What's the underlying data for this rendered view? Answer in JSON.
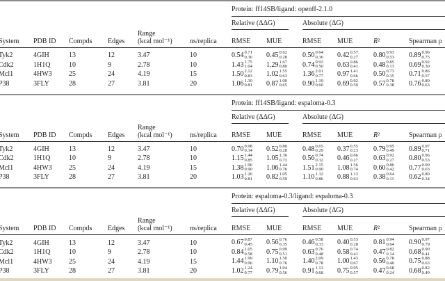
{
  "colors": {
    "separator": "#8c8c8c",
    "rule": "#2b2b2b",
    "footer_bar": "#ddd8c2",
    "text": "#1d1d1d",
    "background": "#ffffff"
  },
  "columns": {
    "system": "System",
    "pdb_id": "PDB ID",
    "compds": "Compds",
    "edges": "Edges",
    "range_line1": "Range",
    "range_line2": "(kcal mol⁻¹)",
    "ns_replica": "ns/replica",
    "relative_group": "Relative (ΔΔG)",
    "absolute_group": "Absolute (ΔG)",
    "rmse": "RMSE",
    "mue": "MUE",
    "r2": "R²",
    "spearman": "Spearman ρ"
  },
  "sections": [
    {
      "protein_header": "Protein: ff14SB/ligand: openff-2.1.0",
      "rows": [
        {
          "system": "Tyk2",
          "pdb_id": "4GIH",
          "compds": "13",
          "edges": "12",
          "range": "3.47",
          "ns_replica": "10",
          "rel_rmse": {
            "v": "0.54",
            "hi": "0.71",
            "lo": "0.36"
          },
          "rel_mue": {
            "v": "0.45",
            "hi": "0.62",
            "lo": "0.28"
          },
          "abs_rmse": {
            "v": "0.50",
            "hi": "0.64",
            "lo": "0.36"
          },
          "abs_mue": {
            "v": "0.42",
            "hi": "0.57",
            "lo": "0.27"
          },
          "r2": {
            "v": "0.80",
            "hi": "0.93",
            "lo": "0.53"
          },
          "spearman": {
            "v": "0.89",
            "hi": "0.96",
            "lo": "0.75"
          }
        },
        {
          "system": "Cdk2",
          "pdb_id": "1H1Q",
          "compds": "10",
          "edges": "9",
          "range": "2.78",
          "ns_replica": "10",
          "rel_rmse": {
            "v": "1.43",
            "hi": "1.75",
            "lo": "1.04"
          },
          "rel_mue": {
            "v": "1.29",
            "hi": "1.67",
            "lo": "0.80"
          },
          "abs_rmse": {
            "v": "0.74",
            "hi": "0.93",
            "lo": "0.50"
          },
          "abs_mue": {
            "v": "0.63",
            "hi": "0.86",
            "lo": "0.41"
          },
          "r2": {
            "v": "0.48",
            "hi": "0.85",
            "lo": "0.13"
          },
          "spearman": {
            "v": "0.69",
            "hi": "0.92",
            "lo": "0.30"
          }
        },
        {
          "system": "Mcl1",
          "pdb_id": "4HW3",
          "compds": "25",
          "edges": "24",
          "range": "4.19",
          "ns_replica": "15",
          "rel_rmse": {
            "v": "1.50",
            "hi": "2.12",
            "lo": "0.83"
          },
          "rel_mue": {
            "v": "1.02",
            "hi": "1.55",
            "lo": "0.63"
          },
          "abs_rmse": {
            "v": "1.36",
            "hi": "2.01",
            "lo": "0.77"
          },
          "abs_mue": {
            "v": "0.97",
            "hi": "1.41",
            "lo": "0.66"
          },
          "r2": {
            "v": "0.50",
            "hi": "0.73",
            "lo": "0.35"
          },
          "spearman": {
            "v": "0.71",
            "hi": "0.86",
            "lo": "0.57"
          }
        },
        {
          "system": "P38",
          "pdb_id": "3FLY",
          "compds": "28",
          "edges": "27",
          "range": "3.81",
          "ns_replica": "20",
          "rel_rmse": {
            "v": "1.06",
            "hi": "1.30",
            "lo": "0.81"
          },
          "rel_mue": {
            "v": "0.87",
            "hi": "1.09",
            "lo": "0.65"
          },
          "abs_rmse": {
            "v": "0.90",
            "hi": "1.19",
            "lo": "0.60"
          },
          "abs_mue": {
            "v": "0.69",
            "hi": "0.92",
            "lo": "0.50"
          },
          "r2": {
            "v": "0.57",
            "hi": "0.78",
            "lo": "0.38"
          },
          "spearman": {
            "v": "0.76",
            "hi": "0.89",
            "lo": "0.63"
          }
        }
      ]
    },
    {
      "protein_header": "Protein: ff14SB/ligand: espaloma-0.3",
      "rows": [
        {
          "system": "Tyk2",
          "pdb_id": "4GIH",
          "compds": "13",
          "edges": "12",
          "range": "3.47",
          "ns_replica": "10",
          "rel_rmse": {
            "v": "0.70",
            "hi": "0.98",
            "lo": "0.34"
          },
          "rel_mue": {
            "v": "0.52",
            "hi": "0.80",
            "lo": "0.28"
          },
          "abs_rmse": {
            "v": "0.48",
            "hi": "0.65",
            "lo": "0.29"
          },
          "abs_mue": {
            "v": "0.37",
            "hi": "0.55",
            "lo": "0.23"
          },
          "r2": {
            "v": "0.79",
            "hi": "0.95",
            "lo": "0.49"
          },
          "spearman": {
            "v": "0.89",
            "hi": "0.97",
            "lo": "0.71"
          }
        },
        {
          "system": "Cdk2",
          "pdb_id": "1H1Q",
          "compds": "10",
          "edges": "9",
          "range": "2.78",
          "ns_replica": "10",
          "rel_rmse": {
            "v": "1.15",
            "hi": "1.44",
            "lo": "0.85"
          },
          "rel_mue": {
            "v": "1.05",
            "hi": "1.36",
            "lo": "0.73"
          },
          "abs_rmse": {
            "v": "0.56",
            "hi": "0.74",
            "lo": "0.32"
          },
          "abs_mue": {
            "v": "0.46",
            "hi": "0.66",
            "lo": "0.27"
          },
          "r2": {
            "v": "0.63",
            "hi": "0.92",
            "lo": "0.27"
          },
          "spearman": {
            "v": "0.80",
            "hi": "0.96",
            "lo": "0.53"
          }
        },
        {
          "system": "Mcl1",
          "pdb_id": "4HW3",
          "compds": "25",
          "edges": "24",
          "range": "4.19",
          "ns_replica": "15",
          "rel_rmse": {
            "v": "1.38",
            "hi": "1.96",
            "lo": "0.90"
          },
          "rel_mue": {
            "v": "1.06",
            "hi": "1.44",
            "lo": "0.76"
          },
          "abs_rmse": {
            "v": "1.51",
            "hi": "2.15",
            "lo": "0.90"
          },
          "abs_mue": {
            "v": "1.08",
            "hi": "1.56",
            "lo": "0.74"
          },
          "r2": {
            "v": "0.60",
            "hi": "0.80",
            "lo": "0.42"
          },
          "spearman": {
            "v": "0.77",
            "hi": "0.90",
            "lo": "0.63"
          }
        },
        {
          "system": "P38",
          "pdb_id": "3FLY",
          "compds": "28",
          "edges": "27",
          "range": "3.81",
          "ns_replica": "20",
          "rel_rmse": {
            "v": "1.03",
            "hi": "1.26",
            "lo": "0.81"
          },
          "rel_mue": {
            "v": "0.82",
            "hi": "1.05",
            "lo": "0.59"
          },
          "abs_rmse": {
            "v": "1.10",
            "hi": "1.32",
            "lo": "0.86"
          },
          "abs_mue": {
            "v": "0.88",
            "hi": "1.13",
            "lo": "0.63"
          },
          "r2": {
            "v": "0.38",
            "hi": "0.64",
            "lo": "0.11"
          },
          "spearman": {
            "v": "0.62",
            "hi": "0.80",
            "lo": "0.34"
          }
        }
      ]
    },
    {
      "protein_header": "Protein: espaloma-0.3/ligand: espaloma-0.3",
      "rows": [
        {
          "system": "Tyk2",
          "pdb_id": "4GIH",
          "compds": "13",
          "edges": "12",
          "range": "3.47",
          "ns_replica": "10",
          "rel_rmse": {
            "v": "0.67",
            "hi": "0.87",
            "lo": "0.45"
          },
          "rel_mue": {
            "v": "0.56",
            "hi": "0.76",
            "lo": "0.35"
          },
          "abs_rmse": {
            "v": "0.46",
            "hi": "0.58",
            "lo": "0.33"
          },
          "abs_mue": {
            "v": "0.40",
            "hi": "0.53",
            "lo": "0.28"
          },
          "r2": {
            "v": "0.81",
            "hi": "0.94",
            "lo": "0.64"
          },
          "spearman": {
            "v": "0.90",
            "hi": "0.97",
            "lo": "0.79"
          }
        },
        {
          "system": "Cdk2",
          "pdb_id": "1H1Q",
          "compds": "10",
          "edges": "9",
          "range": "2.78",
          "ns_replica": "10",
          "rel_rmse": {
            "v": "0.84",
            "hi": "1.05",
            "lo": "0.58"
          },
          "rel_mue": {
            "v": "0.75",
            "hi": "0.99",
            "lo": "0.51"
          },
          "abs_rmse": {
            "v": "0.63",
            "hi": "0.76",
            "lo": "0.48"
          },
          "abs_mue": {
            "v": "0.58",
            "hi": "0.74",
            "lo": "0.41"
          },
          "r2": {
            "v": "0.47",
            "hi": "0.82",
            "lo": "0.14"
          },
          "spearman": {
            "v": "0.68",
            "hi": "0.90",
            "lo": "0.41"
          }
        },
        {
          "system": "Mcl1",
          "pdb_id": "4HW3",
          "compds": "25",
          "edges": "24",
          "range": "4.19",
          "ns_replica": "15",
          "rel_rmse": {
            "v": "1.44",
            "hi": "1.99",
            "lo": "0.96"
          },
          "rel_mue": {
            "v": "1.10",
            "hi": "1.50",
            "lo": "0.76"
          },
          "abs_rmse": {
            "v": "1.40",
            "hi": "2.09",
            "lo": "0.78"
          },
          "abs_mue": {
            "v": "1.00",
            "hi": "1.43",
            "lo": "0.67"
          },
          "r2": {
            "v": "0.56",
            "hi": "0.78",
            "lo": "0.40"
          },
          "spearman": {
            "v": "0.75",
            "hi": "0.88",
            "lo": "0.63"
          }
        },
        {
          "system": "P38",
          "pdb_id": "3FLY",
          "compds": "28",
          "edges": "27",
          "range": "3.81",
          "ns_replica": "20",
          "rel_rmse": {
            "v": "1.02",
            "hi": "1.24",
            "lo": "0.77"
          },
          "rel_mue": {
            "v": "0.79",
            "hi": "1.04",
            "lo": "0.56"
          },
          "abs_rmse": {
            "v": "0.91",
            "hi": "1.13",
            "lo": "0.68"
          },
          "abs_mue": {
            "v": "0.75",
            "hi": "0.95",
            "lo": "0.57"
          },
          "r2": {
            "v": "0.47",
            "hi": "0.68",
            "lo": "0.24"
          },
          "spearman": {
            "v": "0.68",
            "hi": "0.82",
            "lo": "0.49"
          }
        }
      ]
    }
  ]
}
